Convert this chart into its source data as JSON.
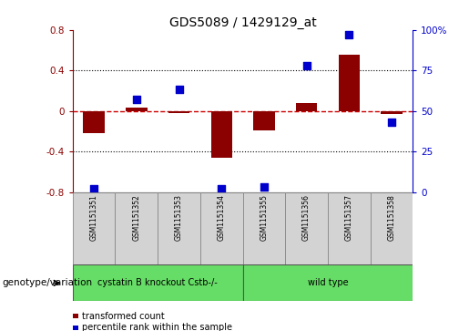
{
  "title": "GDS5089 / 1429129_at",
  "samples": [
    "GSM1151351",
    "GSM1151352",
    "GSM1151353",
    "GSM1151354",
    "GSM1151355",
    "GSM1151356",
    "GSM1151357",
    "GSM1151358"
  ],
  "transformed_count": [
    -0.22,
    0.03,
    -0.02,
    -0.46,
    -0.19,
    0.08,
    0.55,
    -0.03
  ],
  "percentile_rank": [
    2,
    57,
    63,
    2,
    3,
    78,
    97,
    43
  ],
  "group_boundary": 4,
  "group_labels": [
    "cystatin B knockout Cstb-/-",
    "wild type"
  ],
  "group_color": "#66dd66",
  "ylim_left": [
    -0.8,
    0.8
  ],
  "ylim_right": [
    0,
    100
  ],
  "yticks_left": [
    -0.8,
    -0.4,
    0.0,
    0.4,
    0.8
  ],
  "yticks_left_labels": [
    "-0.8",
    "-0.4",
    "0",
    "0.4",
    "0.8"
  ],
  "yticks_right": [
    0,
    25,
    50,
    75,
    100
  ],
  "yticks_right_labels": [
    "0",
    "25",
    "50",
    "75",
    "100%"
  ],
  "bar_color": "#8B0000",
  "dot_color": "#0000CC",
  "zero_line_color": "#CC0000",
  "dotted_line_color": "#000000",
  "genotype_label": "genotype/variation",
  "legend_items": [
    {
      "color": "#8B0000",
      "label": "transformed count"
    },
    {
      "color": "#0000CC",
      "label": "percentile rank within the sample"
    }
  ],
  "bar_width": 0.5,
  "dot_size": 30,
  "sample_box_color": "#d3d3d3",
  "title_fontsize": 10,
  "tick_fontsize": 7.5,
  "sample_fontsize": 5.5,
  "group_fontsize": 7,
  "legend_fontsize": 7,
  "genotype_fontsize": 7.5
}
